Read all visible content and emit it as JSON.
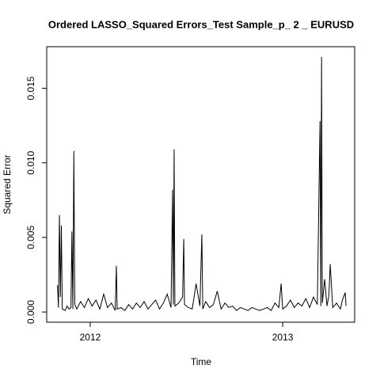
{
  "chart_data": {
    "type": "line",
    "title": "Ordered LASSO_Squared Errors_Test Sample_p_ 2 _ EURUSD",
    "x_label": "Time",
    "y_label": "Squared Error",
    "x": [
      2011.83,
      2011.835,
      2011.84,
      2011.845,
      2011.85,
      2011.855,
      2011.87,
      2011.88,
      2011.89,
      2011.9,
      2011.905,
      2011.91,
      2011.915,
      2011.92,
      2011.93,
      2011.95,
      2011.97,
      2011.99,
      2012.01,
      2012.03,
      2012.05,
      2012.07,
      2012.09,
      2012.11,
      2012.13,
      2012.136,
      2012.14,
      2012.16,
      2012.18,
      2012.2,
      2012.22,
      2012.24,
      2012.26,
      2012.28,
      2012.3,
      2012.32,
      2012.34,
      2012.36,
      2012.38,
      2012.4,
      2012.42,
      2012.428,
      2012.432,
      2012.436,
      2012.44,
      2012.46,
      2012.48,
      2012.486,
      2012.49,
      2012.51,
      2012.53,
      2012.55,
      2012.57,
      2012.58,
      2012.585,
      2012.6,
      2012.62,
      2012.64,
      2012.66,
      2012.68,
      2012.7,
      2012.72,
      2012.74,
      2012.76,
      2012.78,
      2012.8,
      2012.82,
      2012.84,
      2012.86,
      2012.88,
      2012.9,
      2012.92,
      2012.94,
      2012.96,
      2012.98,
      2012.992,
      2013.0,
      2013.02,
      2013.04,
      2013.06,
      2013.08,
      2013.1,
      2013.12,
      2013.14,
      2013.16,
      2013.18,
      2013.194,
      2013.198,
      2013.202,
      2013.206,
      2013.218,
      2013.23,
      2013.24,
      2013.247,
      2013.26,
      2013.28,
      2013.3,
      2013.31,
      2013.325,
      2013.329
    ],
    "series": [
      {
        "name": "Squared Error",
        "color": "#000000",
        "values": [
          0.0018,
          0.0003,
          0.0065,
          0.001,
          0.0058,
          0.0002,
          0.0001,
          0.0004,
          0.0002,
          0.0003,
          0.0054,
          0.0002,
          0.0108,
          0.0005,
          0.0002,
          0.0007,
          0.0003,
          0.0009,
          0.0004,
          0.0008,
          0.0002,
          0.0012,
          0.0003,
          0.0006,
          0.0001,
          0.0031,
          0.0002,
          0.0003,
          0.0001,
          0.0005,
          0.0002,
          0.0006,
          0.0003,
          0.0007,
          0.0002,
          0.0005,
          0.0008,
          0.0002,
          0.0006,
          0.0012,
          0.0003,
          0.0082,
          0.0005,
          0.0109,
          0.0004,
          0.0006,
          0.001,
          0.0049,
          0.0005,
          0.0003,
          0.0002,
          0.0019,
          0.0004,
          0.0052,
          0.0002,
          0.0007,
          0.0003,
          0.0005,
          0.0014,
          0.0002,
          0.0006,
          0.0003,
          0.0004,
          0.0001,
          0.0003,
          0.0002,
          0.0001,
          0.0003,
          0.0002,
          0.0001,
          0.0002,
          0.0003,
          0.0001,
          0.0006,
          0.0003,
          0.0019,
          0.0002,
          0.0004,
          0.0008,
          0.0003,
          0.0006,
          0.0004,
          0.0009,
          0.0003,
          0.001,
          0.0005,
          0.0128,
          0.0004,
          0.0171,
          0.0006,
          0.0022,
          0.0004,
          0.0011,
          0.0032,
          0.0003,
          0.0006,
          0.0002,
          0.0008,
          0.0013,
          0.0004
        ]
      }
    ],
    "xlim": [
      2011.774,
      2013.374
    ],
    "xticks": [
      2012,
      2013
    ],
    "ylim": [
      -0.000684,
      0.017784
    ],
    "yticks": [
      {
        "value": 0,
        "label": "0.000"
      },
      {
        "value": 0.005,
        "label": "0.005"
      },
      {
        "value": 0.01,
        "label": "0.010"
      },
      {
        "value": 0.015,
        "label": "0.015"
      }
    ],
    "grid": false
  }
}
